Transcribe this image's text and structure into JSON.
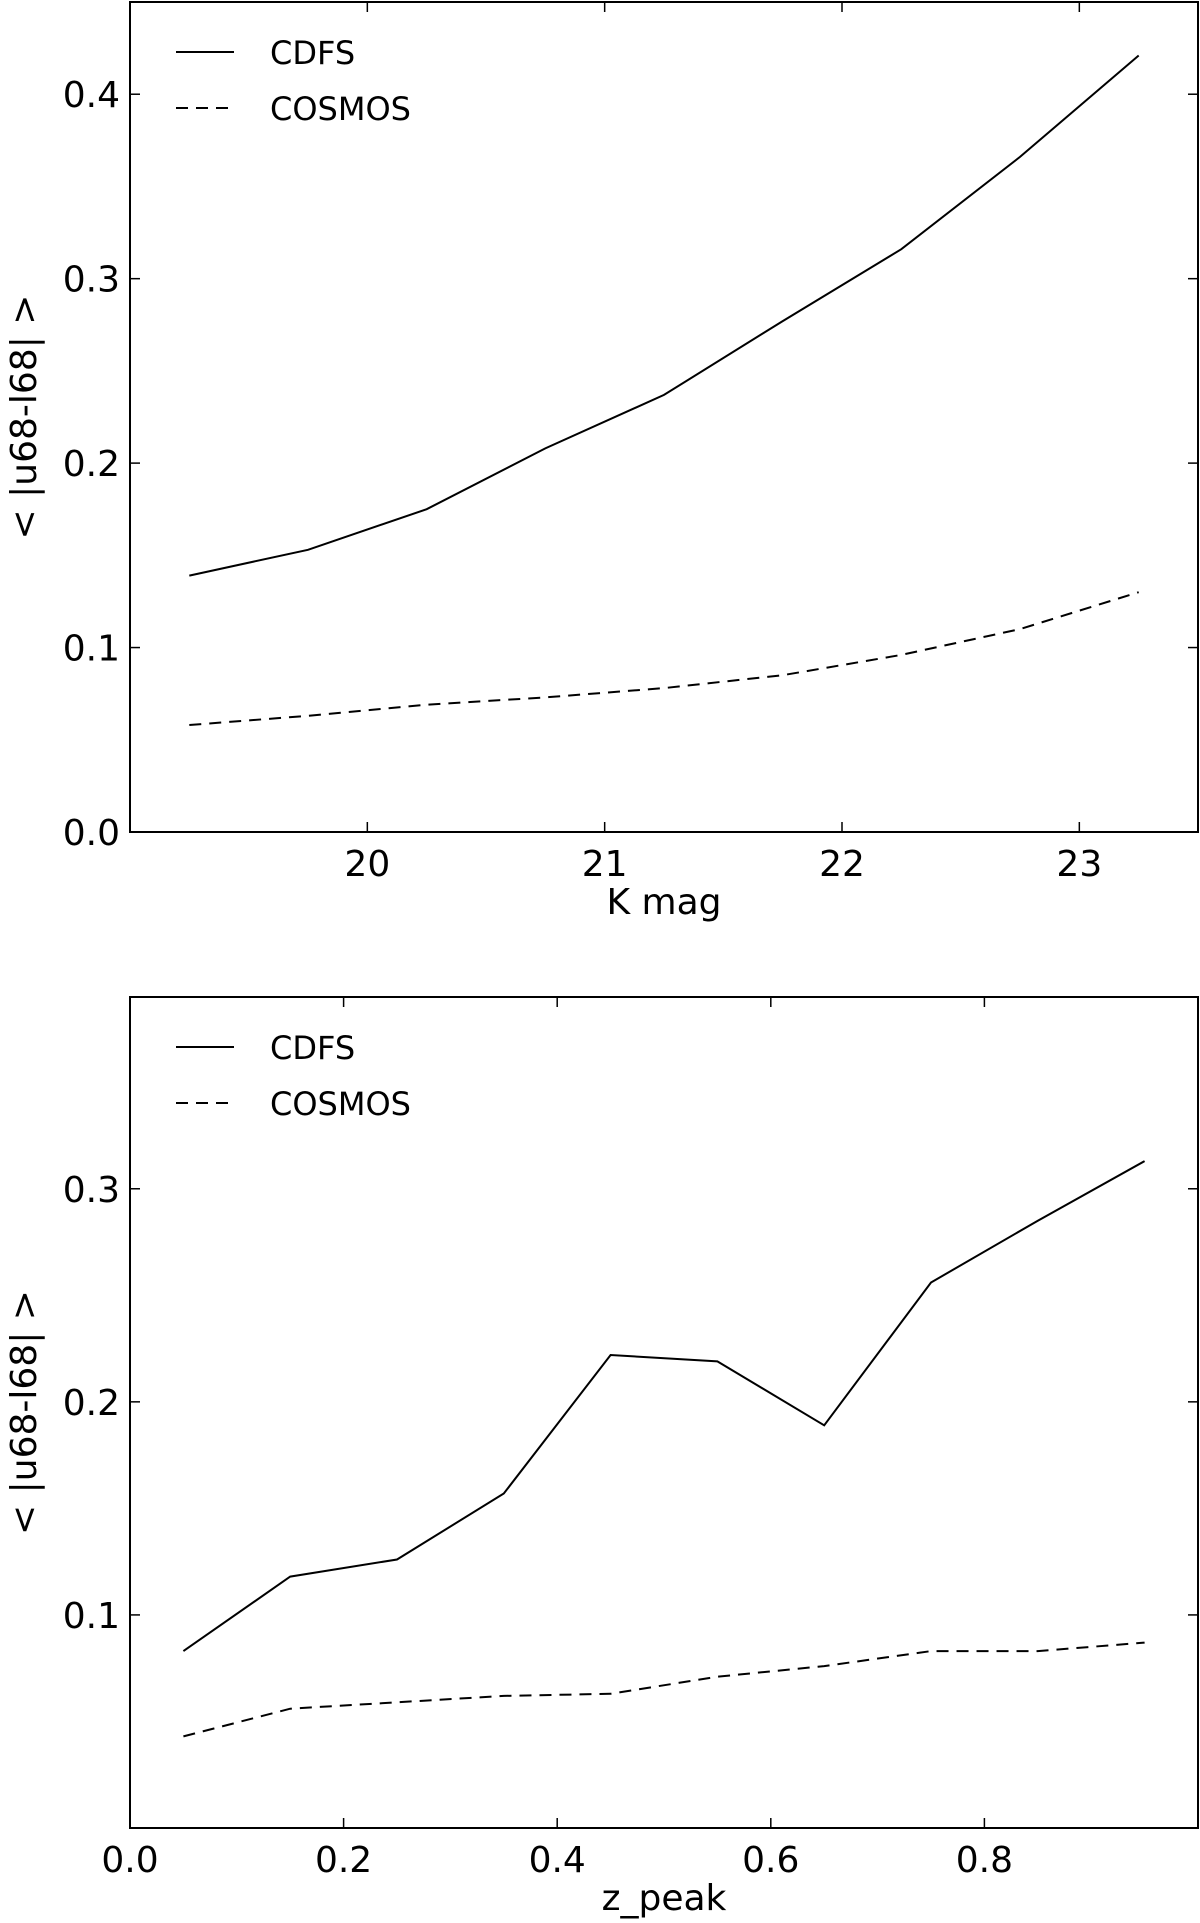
{
  "chart_data": [
    {
      "type": "line",
      "xlabel": "K mag",
      "ylabel": "< |u68-l68| >",
      "xlim": [
        19.0,
        23.5
      ],
      "ylim": [
        0.0,
        0.45
      ],
      "xticks": [
        20,
        21,
        22,
        23
      ],
      "xtick_labels": [
        "20",
        "21",
        "22",
        "23"
      ],
      "yticks": [
        0.0,
        0.1,
        0.2,
        0.3,
        0.4
      ],
      "ytick_labels": [
        "0.0",
        "0.1",
        "0.2",
        "0.3",
        "0.4"
      ],
      "legend_position": "top-left",
      "grid": false,
      "x": [
        19.25,
        19.75,
        20.25,
        20.75,
        21.25,
        21.75,
        22.25,
        22.75,
        23.25
      ],
      "series": [
        {
          "name": "CDFS",
          "style": "solid",
          "color": "#000000",
          "values": [
            0.139,
            0.153,
            0.175,
            0.208,
            0.237,
            0.277,
            0.316,
            0.366,
            0.421
          ]
        },
        {
          "name": "COSMOS",
          "style": "dashed",
          "color": "#000000",
          "values": [
            0.058,
            0.063,
            0.069,
            0.073,
            0.078,
            0.085,
            0.096,
            0.11,
            0.13
          ]
        }
      ]
    },
    {
      "type": "line",
      "xlabel": "z_peak",
      "ylabel": "< |u68-l68| >",
      "xlim": [
        0.0,
        1.0
      ],
      "ylim": [
        0.0,
        0.39
      ],
      "xticks": [
        0.0,
        0.2,
        0.4,
        0.6,
        0.8
      ],
      "xtick_labels": [
        "0.0",
        "0.2",
        "0.4",
        "0.6",
        "0.8"
      ],
      "yticks": [
        0.1,
        0.2,
        0.3
      ],
      "ytick_labels": [
        "0.1",
        "0.2",
        "0.3"
      ],
      "legend_position": "top-left",
      "grid": false,
      "x": [
        0.05,
        0.15,
        0.25,
        0.35,
        0.45,
        0.55,
        0.65,
        0.75,
        0.85,
        0.95
      ],
      "series": [
        {
          "name": "CDFS",
          "style": "solid",
          "color": "#000000",
          "values": [
            0.083,
            0.118,
            0.126,
            0.157,
            0.222,
            0.219,
            0.189,
            0.256,
            0.285,
            0.313
          ]
        },
        {
          "name": "COSMOS",
          "style": "dashed",
          "color": "#000000",
          "values": [
            0.043,
            0.056,
            0.059,
            0.062,
            0.063,
            0.071,
            0.076,
            0.083,
            0.083,
            0.087
          ]
        }
      ]
    }
  ]
}
